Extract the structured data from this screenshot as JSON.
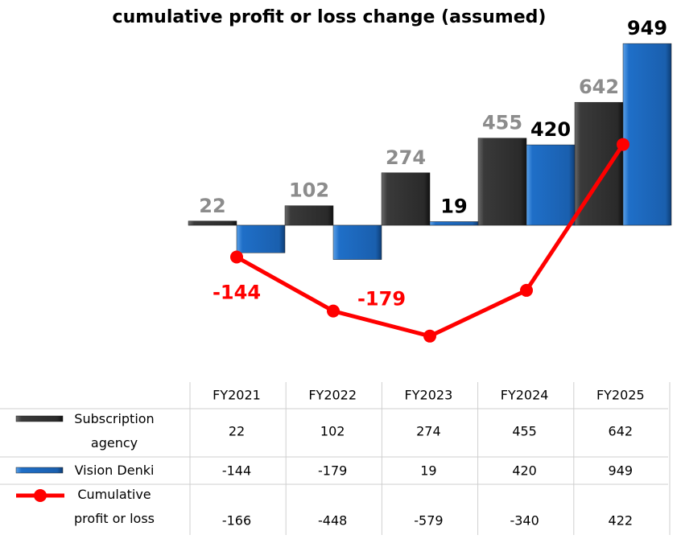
{
  "chart_data": {
    "type": "bar_line",
    "title": "cumulative profit or loss change (assumed)",
    "categories": [
      "FY2021",
      "FY2022",
      "FY2023",
      "FY2024",
      "FY2025"
    ],
    "series": [
      {
        "name": "Subscription agency",
        "color": "#3a3a3a",
        "label_color": "#8c8c8c",
        "type": "bar",
        "values": [
          22,
          102,
          274,
          455,
          642
        ]
      },
      {
        "name": "Vision Denki",
        "color": "#1f6fc8",
        "label_color": "#000000",
        "negative_label_color": "#ff0000",
        "type": "bar",
        "values": [
          -144,
          -179,
          19,
          420,
          949
        ]
      },
      {
        "name": "Cumulative profit or loss",
        "color": "#ff0000",
        "type": "line",
        "values": [
          -166,
          -448,
          -579,
          -340,
          422
        ]
      }
    ],
    "ylim": [
      -700,
      1000
    ],
    "data_table": true
  }
}
